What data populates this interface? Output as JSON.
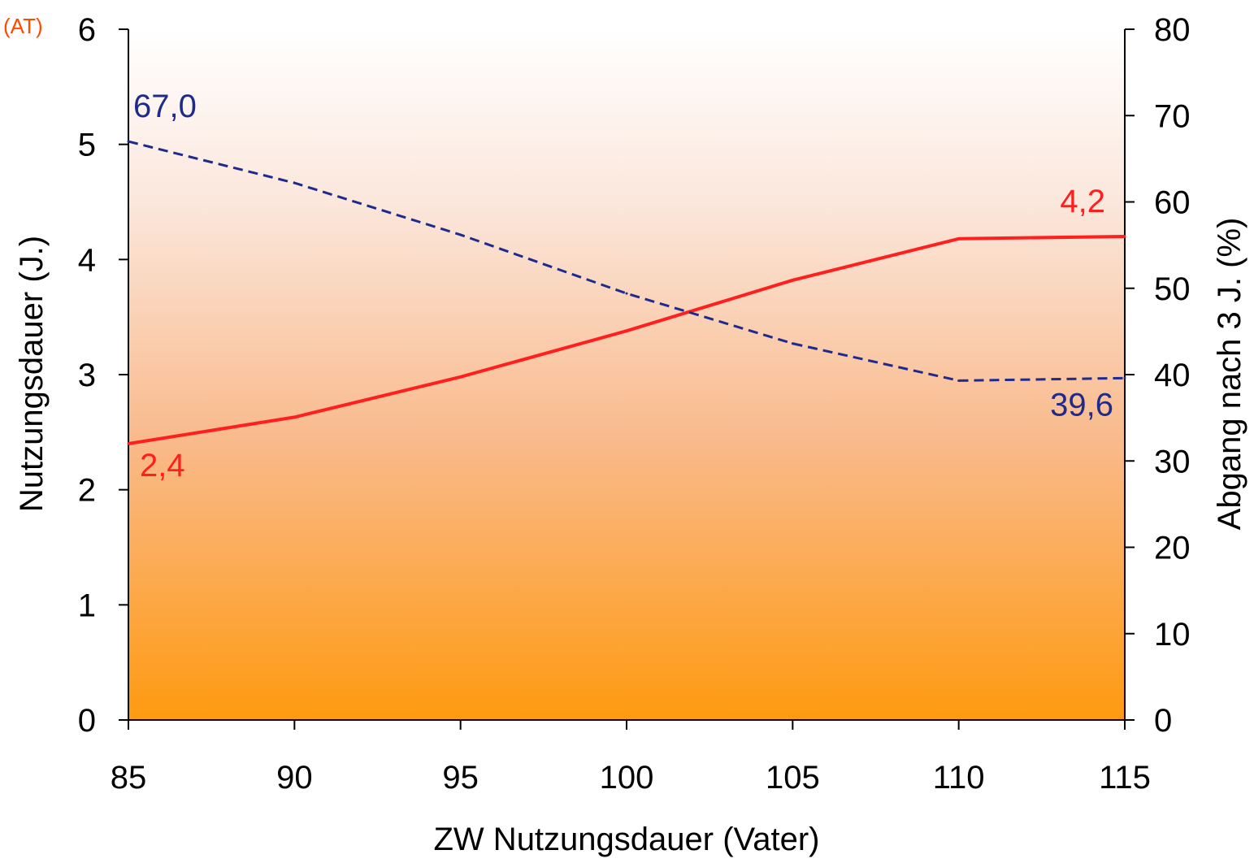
{
  "chart_data": {
    "type": "line",
    "corner_label": "(AT)",
    "xlabel": "ZW Nutzungsdauer (Vater)",
    "ylabel_left": "Nutzungsdauer (J.)",
    "ylabel_right": "Abgang nach 3 J. (%)",
    "x": [
      85,
      90,
      95,
      100,
      105,
      110,
      115
    ],
    "x_ticks": [
      "85",
      "90",
      "95",
      "100",
      "105",
      "110",
      "115"
    ],
    "xlim": [
      85,
      115
    ],
    "ylim_left": [
      0,
      6
    ],
    "ylim_right": [
      0,
      80
    ],
    "y_ticks_left": [
      "0",
      "1",
      "2",
      "3",
      "4",
      "5",
      "6"
    ],
    "y_ticks_right": [
      "0",
      "10",
      "20",
      "30",
      "40",
      "50",
      "60",
      "70",
      "80"
    ],
    "grid": false,
    "background_gradient": [
      "#ffffff",
      "#fbe7dc",
      "#f9b98a",
      "#ff9a10"
    ],
    "series": [
      {
        "axis": "left",
        "style": "solid",
        "color": "#ff1f1f",
        "values": [
          2.4,
          2.63,
          2.98,
          3.38,
          3.82,
          4.18,
          4.2
        ],
        "annotations": [
          {
            "x": 85,
            "text": "2,4"
          },
          {
            "x": 115,
            "text": "4,2"
          }
        ]
      },
      {
        "axis": "right",
        "style": "dashed",
        "color": "#1e2a8c",
        "values": [
          67.0,
          62.2,
          56.2,
          49.4,
          43.6,
          39.3,
          39.6
        ],
        "annotations": [
          {
            "x": 85,
            "text": "67,0"
          },
          {
            "x": 115,
            "text": "39,6"
          }
        ]
      }
    ]
  }
}
